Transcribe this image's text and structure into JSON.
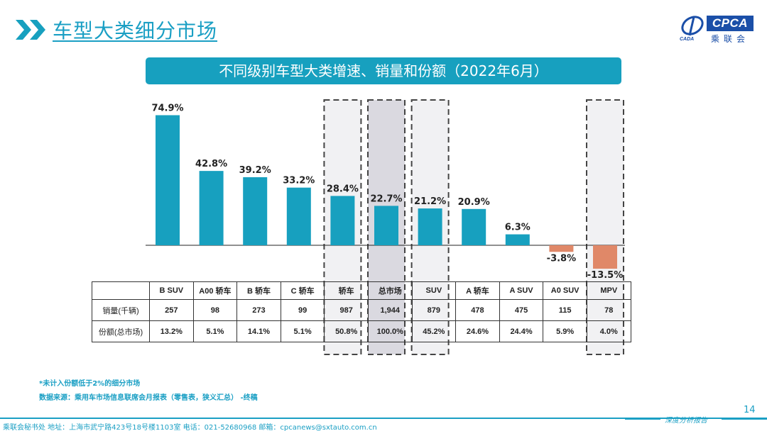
{
  "header": {
    "title": "车型大类细分市场"
  },
  "logo": {
    "brand": "CPCA",
    "sub": "乘联会",
    "emblem_text": "CADA"
  },
  "banner": {
    "title": "不同级别车型大类增速、销量和份额（2022年6月）"
  },
  "colors": {
    "accent": "#17a0bf",
    "positive_bar": "#17a0bf",
    "negative_bar": "#e08868",
    "highlight_box": "#f1f1f3",
    "highlight_total": "#dad9e0"
  },
  "chart_data": {
    "type": "bar",
    "title": "不同级别车型大类增速、销量和份额（2022年6月）",
    "categories": [
      "B SUV",
      "A00 轿车",
      "B 轿车",
      "C 轿车",
      "轿车",
      "总市场",
      "SUV",
      "A 轿车",
      "A SUV",
      "A0 SUV",
      "MPV"
    ],
    "values": [
      74.9,
      42.8,
      39.2,
      33.2,
      28.4,
      22.7,
      21.2,
      20.9,
      6.3,
      -3.8,
      -13.5
    ],
    "value_labels": [
      "74.9%",
      "42.8%",
      "39.2%",
      "33.2%",
      "28.4%",
      "22.7%",
      "21.2%",
      "20.9%",
      "6.3%",
      "-3.8%",
      "-13.5%"
    ],
    "highlighted": [
      "轿车",
      "总市场",
      "SUV",
      "MPV"
    ],
    "xlabel": "",
    "ylabel": "",
    "ylim": [
      -15,
      80
    ],
    "grid": false
  },
  "table": {
    "headers": [
      "",
      "B SUV",
      "A00 轿车",
      "B 轿车",
      "C 轿车",
      "轿车",
      "总市场",
      "SUV",
      "A 轿车",
      "A SUV",
      "A0 SUV",
      "MPV"
    ],
    "rows": [
      {
        "label": "销量(千辆)",
        "cells": [
          "257",
          "98",
          "273",
          "99",
          "987",
          "1,944",
          "879",
          "478",
          "475",
          "115",
          "78"
        ]
      },
      {
        "label": "份额(总市场)",
        "cells": [
          "13.2%",
          "5.1%",
          "14.1%",
          "5.1%",
          "50.8%",
          "100.0%",
          "45.2%",
          "24.6%",
          "24.4%",
          "5.9%",
          "4.0%"
        ]
      }
    ]
  },
  "notes": {
    "note1": "*未计入份额低于2%的细分市场",
    "source": "数据来源：乘用车市场信息联席会月报表（零售表，狭义汇总） -终稿"
  },
  "footer": {
    "contact": "乘联会秘书处   地址：上海市武宁路423号18号楼1103室  电话：021-52680968   邮箱：cpcanews@sxtauto.com.cn",
    "report_label": "深度分析报告",
    "page_number": "14"
  }
}
